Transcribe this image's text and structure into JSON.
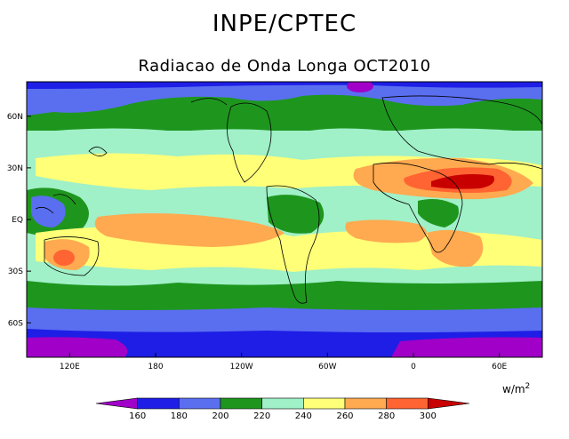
{
  "header": {
    "title": "INPE/CPTEC",
    "subtitle": "Radiacao de Onda Longa OCT2010"
  },
  "map": {
    "lat_labels": [
      {
        "text": "60N",
        "lat": 60
      },
      {
        "text": "30N",
        "lat": 30
      },
      {
        "text": "EQ",
        "lat": 0
      },
      {
        "text": "30S",
        "lat": -30
      },
      {
        "text": "60S",
        "lat": -60
      }
    ],
    "lon_labels": [
      {
        "text": "120E",
        "lon": 120
      },
      {
        "text": "180",
        "lon": 180
      },
      {
        "text": "120W",
        "lon": 240
      },
      {
        "text": "60W",
        "lon": 300
      },
      {
        "text": "0",
        "lon": 360
      },
      {
        "text": "60E",
        "lon": 420
      }
    ],
    "lon_range": [
      90,
      450
    ],
    "lat_range": [
      -80,
      80
    ]
  },
  "colorbar": {
    "units_base": "w/m",
    "units_exp": "2",
    "levels": [
      "160",
      "180",
      "200",
      "220",
      "240",
      "260",
      "280",
      "300"
    ],
    "colors": [
      "#a000c8",
      "#1e1ee6",
      "#5a6ef0",
      "#1e961e",
      "#a0f0c8",
      "#ffff78",
      "#ffaa50",
      "#ff6432",
      "#c80000"
    ]
  }
}
